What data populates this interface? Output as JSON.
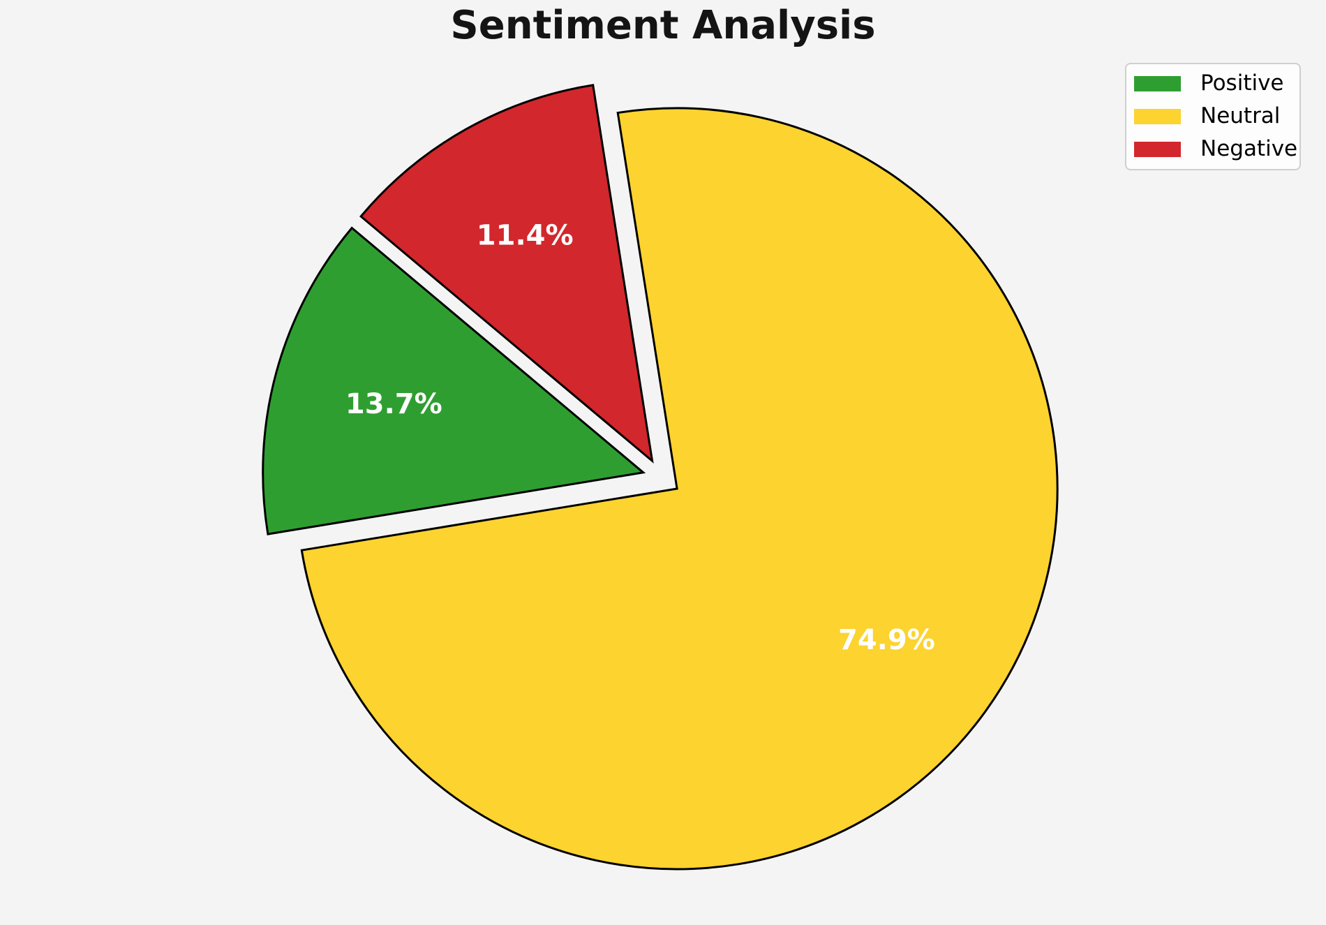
{
  "title": "Sentiment Analysis",
  "background_color": "#f4f4f5",
  "chart_data": {
    "type": "pie",
    "title": "Sentiment Analysis",
    "labels": [
      "Positive",
      "Neutral",
      "Negative"
    ],
    "values": [
      13.7,
      74.9,
      11.4
    ],
    "slices": [
      {
        "label": "Positive",
        "value": 13.7,
        "pct_label": "13.7%",
        "color": "#2F9E31",
        "explode": 0.05
      },
      {
        "label": "Neutral",
        "value": 74.9,
        "pct_label": "74.9%",
        "color": "#FCD32F",
        "explode": 0.05
      },
      {
        "label": "Negative",
        "value": 11.4,
        "pct_label": "11.4%",
        "color": "#D2272C",
        "explode": 0.05
      }
    ],
    "startangle": 140,
    "direction": "counterclockwise",
    "edge_color": "#000000",
    "label_color": "#ffffff",
    "pct_distance": 0.68,
    "legend": {
      "position": "upper right",
      "entries": [
        "Positive",
        "Neutral",
        "Negative"
      ]
    }
  }
}
